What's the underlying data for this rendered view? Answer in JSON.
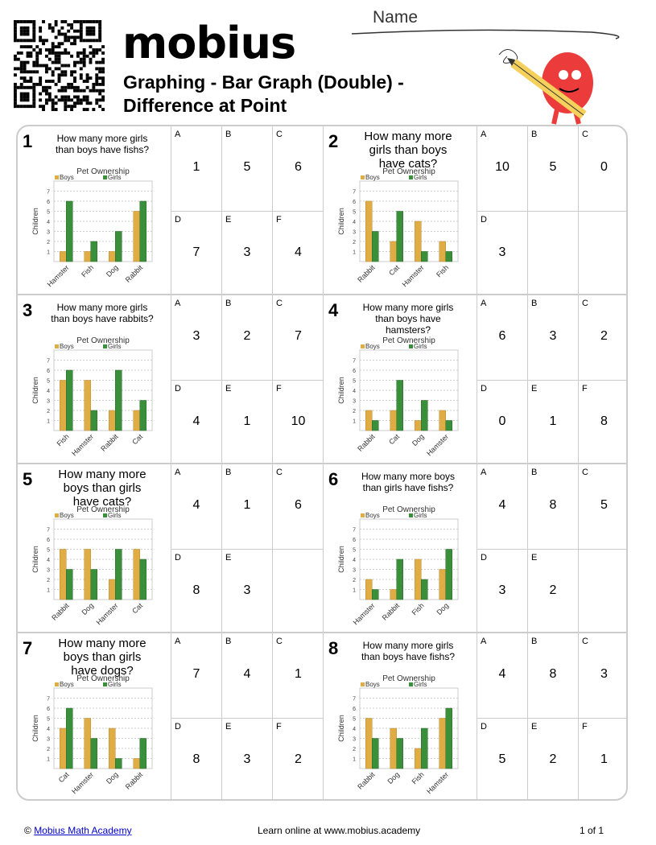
{
  "header": {
    "logo": "mobius",
    "title_line1": "Graphing - Bar Graph (Double) -",
    "title_line2": "Difference at Point",
    "name_label": "Name"
  },
  "colors": {
    "boys": "#e0ac44",
    "girls": "#3a8f3a",
    "border": "#cccccc"
  },
  "chart_common": {
    "title": "Pet Ownership",
    "ylabel": "Children",
    "legend": [
      "Boys",
      "Girls"
    ],
    "yticks": [
      1,
      2,
      3,
      4,
      5,
      6,
      7
    ],
    "ylim": [
      0,
      8
    ]
  },
  "problems": [
    {
      "num": "1",
      "question": "How many more girls than boys have fishs?",
      "big": false,
      "categories": [
        "Hamster",
        "Fish",
        "Dog",
        "Rabbit"
      ],
      "boys": [
        1,
        1,
        1,
        5
      ],
      "girls": [
        6,
        2,
        3,
        6
      ],
      "answers": [
        {
          "l": "A",
          "v": "1"
        },
        {
          "l": "B",
          "v": "5"
        },
        {
          "l": "C",
          "v": "6"
        },
        {
          "l": "D",
          "v": "7"
        },
        {
          "l": "E",
          "v": "3"
        },
        {
          "l": "F",
          "v": "4"
        }
      ]
    },
    {
      "num": "2",
      "question": "How many more girls than boys have cats?",
      "big": true,
      "categories": [
        "Rabbit",
        "Cat",
        "Hamster",
        "Fish"
      ],
      "boys": [
        6,
        2,
        4,
        2
      ],
      "girls": [
        3,
        5,
        1,
        1
      ],
      "answers": [
        {
          "l": "A",
          "v": "10"
        },
        {
          "l": "B",
          "v": "5"
        },
        {
          "l": "C",
          "v": "0"
        },
        {
          "l": "D",
          "v": "3"
        },
        {
          "l": "",
          "v": ""
        },
        {
          "l": "",
          "v": ""
        }
      ]
    },
    {
      "num": "3",
      "question": "How many more girls than boys have rabbits?",
      "big": false,
      "categories": [
        "Fish",
        "Hamster",
        "Rabbit",
        "Cat"
      ],
      "boys": [
        5,
        5,
        2,
        2
      ],
      "girls": [
        6,
        2,
        6,
        3
      ],
      "answers": [
        {
          "l": "A",
          "v": "3"
        },
        {
          "l": "B",
          "v": "2"
        },
        {
          "l": "C",
          "v": "7"
        },
        {
          "l": "D",
          "v": "4"
        },
        {
          "l": "E",
          "v": "1"
        },
        {
          "l": "F",
          "v": "10"
        }
      ]
    },
    {
      "num": "4",
      "question": "How many more girls than boys have hamsters?",
      "big": false,
      "categories": [
        "Rabbit",
        "Cat",
        "Dog",
        "Hamster"
      ],
      "boys": [
        2,
        2,
        1,
        2
      ],
      "girls": [
        1,
        5,
        3,
        1
      ],
      "answers": [
        {
          "l": "A",
          "v": "6"
        },
        {
          "l": "B",
          "v": "3"
        },
        {
          "l": "C",
          "v": "2"
        },
        {
          "l": "D",
          "v": "0"
        },
        {
          "l": "E",
          "v": "1"
        },
        {
          "l": "F",
          "v": "8"
        }
      ]
    },
    {
      "num": "5",
      "question": "How many more boys than girls have cats?",
      "big": true,
      "categories": [
        "Rabbit",
        "Dog",
        "Hamster",
        "Cat"
      ],
      "boys": [
        5,
        5,
        2,
        5
      ],
      "girls": [
        3,
        3,
        5,
        4
      ],
      "answers": [
        {
          "l": "A",
          "v": "4"
        },
        {
          "l": "B",
          "v": "1"
        },
        {
          "l": "C",
          "v": "6"
        },
        {
          "l": "D",
          "v": "8"
        },
        {
          "l": "E",
          "v": "3"
        },
        {
          "l": "",
          "v": ""
        }
      ]
    },
    {
      "num": "6",
      "question": "How many more boys than girls have fishs?",
      "big": false,
      "categories": [
        "Hamster",
        "Rabbit",
        "Fish",
        "Dog"
      ],
      "boys": [
        2,
        1,
        4,
        3
      ],
      "girls": [
        1,
        4,
        2,
        5
      ],
      "answers": [
        {
          "l": "A",
          "v": "4"
        },
        {
          "l": "B",
          "v": "8"
        },
        {
          "l": "C",
          "v": "5"
        },
        {
          "l": "D",
          "v": "3"
        },
        {
          "l": "E",
          "v": "2"
        },
        {
          "l": "",
          "v": ""
        }
      ]
    },
    {
      "num": "7",
      "question": "How many more boys than girls have dogs?",
      "big": true,
      "categories": [
        "Cat",
        "Hamster",
        "Dog",
        "Rabbit"
      ],
      "boys": [
        4,
        5,
        4,
        1
      ],
      "girls": [
        6,
        3,
        1,
        3
      ],
      "answers": [
        {
          "l": "A",
          "v": "7"
        },
        {
          "l": "B",
          "v": "4"
        },
        {
          "l": "C",
          "v": "1"
        },
        {
          "l": "D",
          "v": "8"
        },
        {
          "l": "E",
          "v": "3"
        },
        {
          "l": "F",
          "v": "2"
        }
      ]
    },
    {
      "num": "8",
      "question": "How many more girls than boys have fishs?",
      "big": false,
      "categories": [
        "Rabbit",
        "Dog",
        "Fish",
        "Hamster"
      ],
      "boys": [
        5,
        4,
        2,
        5
      ],
      "girls": [
        3,
        3,
        4,
        6
      ],
      "answers": [
        {
          "l": "A",
          "v": "4"
        },
        {
          "l": "B",
          "v": "8"
        },
        {
          "l": "C",
          "v": "3"
        },
        {
          "l": "D",
          "v": "5"
        },
        {
          "l": "E",
          "v": "2"
        },
        {
          "l": "F",
          "v": "1"
        }
      ]
    }
  ],
  "footer": {
    "copyright": "©",
    "link": "Mobius Math Academy",
    "center": "Learn online at www.mobius.academy",
    "page": "1 of 1"
  }
}
